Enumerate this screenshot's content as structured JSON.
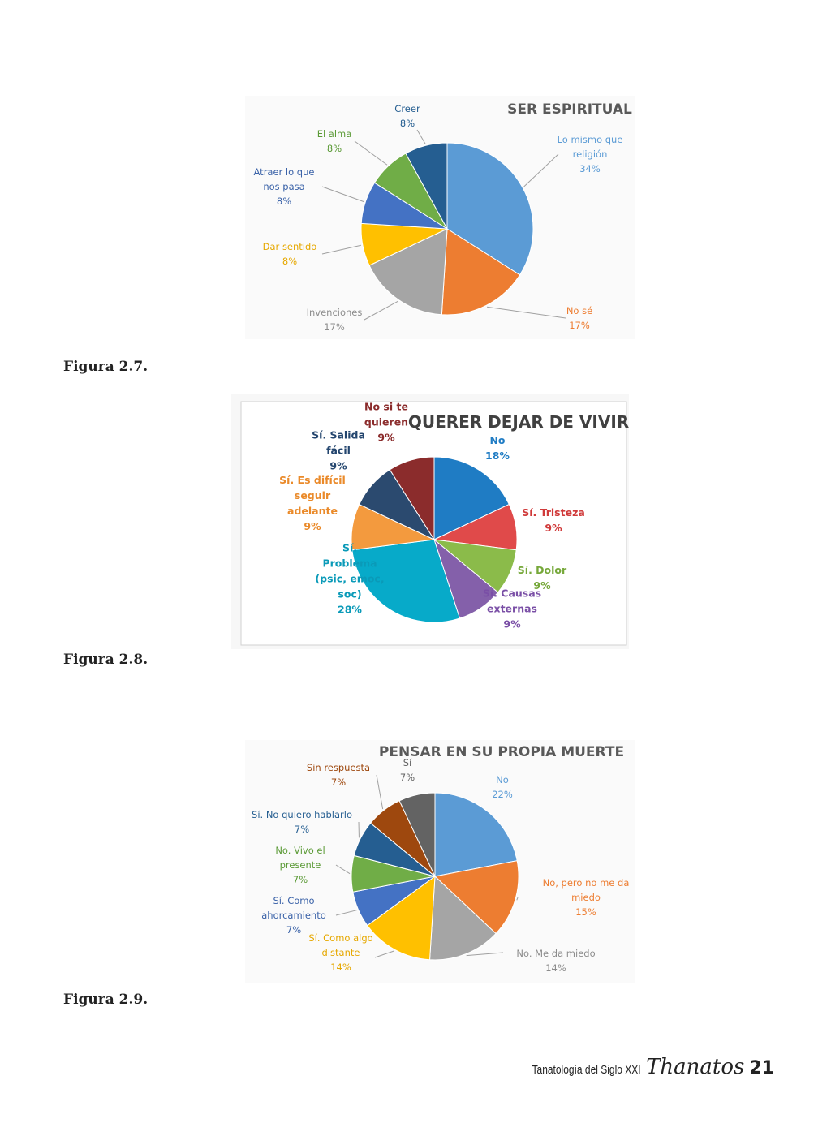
{
  "chart_data": [
    {
      "type": "pie",
      "title": "SER ESPIRITUAL",
      "slices": [
        {
          "label": [
            "Lo mismo que",
            "religión"
          ],
          "value": 34,
          "pct": "34%",
          "color": "#5b9bd5",
          "label_color": "#5b9bd5"
        },
        {
          "label": [
            "No sé"
          ],
          "value": 17,
          "pct": "17%",
          "color": "#ed7d31",
          "label_color": "#ed7d31"
        },
        {
          "label": [
            "Invenciones"
          ],
          "value": 17,
          "pct": "17%",
          "color": "#a5a5a5",
          "label_color": "#8c8c8c"
        },
        {
          "label": [
            "Dar sentido"
          ],
          "value": 8,
          "pct": "8%",
          "color": "#ffc000",
          "label_color": "#e6a800"
        },
        {
          "label": [
            "Atraer lo que",
            "nos pasa"
          ],
          "value": 8,
          "pct": "8%",
          "color": "#4472c4",
          "label_color": "#3a62a8"
        },
        {
          "label": [
            "El alma"
          ],
          "value": 8,
          "pct": "8%",
          "color": "#70ad47",
          "label_color": "#5b9a36"
        },
        {
          "label": [
            "Creer"
          ],
          "value": 8,
          "pct": "8%",
          "color": "#255e91",
          "label_color": "#255e91"
        }
      ]
    },
    {
      "type": "pie",
      "title": "QUERER DEJAR DE VIVIR",
      "slices": [
        {
          "label": [
            "No"
          ],
          "value": 18,
          "pct": "18%",
          "color": "#1f7cc4",
          "label_color": "#1f7cc4"
        },
        {
          "label": [
            "Sí. Tristeza"
          ],
          "value": 9,
          "pct": "9%",
          "color": "#e04a4a",
          "label_color": "#d03a3a"
        },
        {
          "label": [
            "Sí. Dolor"
          ],
          "value": 9,
          "pct": "9%",
          "color": "#8bbb4a",
          "label_color": "#76a83a"
        },
        {
          "label": [
            "Sí. Causas",
            "externas"
          ],
          "value": 9,
          "pct": "9%",
          "color": "#8460aa",
          "label_color": "#7a4fa6"
        },
        {
          "label": [
            "Sí.",
            "Problema",
            "(psic, emoc,",
            "soc)"
          ],
          "value": 28,
          "pct": "28%",
          "color": "#07aac9",
          "label_color": "#0a9ab8"
        },
        {
          "label": [
            "Sí. Es difícil",
            "seguir",
            "adelante"
          ],
          "value": 9,
          "pct": "9%",
          "color": "#f39a3e",
          "label_color": "#ea8a2a"
        },
        {
          "label": [
            "Sí. Salida",
            "fácil"
          ],
          "value": 9,
          "pct": "9%",
          "color": "#2b4a6f",
          "label_color": "#23456e"
        },
        {
          "label": [
            "No si te",
            "quieren"
          ],
          "value": 9,
          "pct": "9%",
          "color": "#8b2c2c",
          "label_color": "#8b2c2c"
        }
      ]
    },
    {
      "type": "pie",
      "title": "PENSAR EN SU PROPIA MUERTE",
      "slices": [
        {
          "label": [
            "No"
          ],
          "value": 22,
          "pct": "22%",
          "color": "#5b9bd5",
          "label_color": "#5b9bd5"
        },
        {
          "label": [
            "No, pero no me da",
            "miedo"
          ],
          "value": 15,
          "pct": "15%",
          "color": "#ed7d31",
          "label_color": "#ed7d31"
        },
        {
          "label": [
            "No. Me da miedo"
          ],
          "value": 14,
          "pct": "14%",
          "color": "#a5a5a5",
          "label_color": "#8c8c8c"
        },
        {
          "label": [
            "Sí. Como algo",
            "distante"
          ],
          "value": 14,
          "pct": "14%",
          "color": "#ffc000",
          "label_color": "#e6a800"
        },
        {
          "label": [
            "Sí. Como",
            "ahorcamiento"
          ],
          "value": 7,
          "pct": "7%",
          "color": "#4472c4",
          "label_color": "#3a62a8"
        },
        {
          "label": [
            "No. Vivo el",
            "presente"
          ],
          "value": 7,
          "pct": "7%",
          "color": "#70ad47",
          "label_color": "#5b9a36"
        },
        {
          "label": [
            "Sí. No quiero hablarlo"
          ],
          "value": 7,
          "pct": "7%",
          "color": "#255e91",
          "label_color": "#255e91"
        },
        {
          "label": [
            "Sin respuesta"
          ],
          "value": 7,
          "pct": "7%",
          "color": "#9e480e",
          "label_color": "#9e480e"
        },
        {
          "label": [
            "Sí"
          ],
          "value": 7,
          "pct": "7%",
          "color": "#636363",
          "label_color": "#636363"
        }
      ]
    }
  ],
  "captions": [
    "Figura 2.7.",
    "Figura 2.8.",
    "Figura 2.9."
  ],
  "footer": {
    "text": "Tanatología del Siglo XXI",
    "brand": "Thanatos",
    "page": "21"
  }
}
